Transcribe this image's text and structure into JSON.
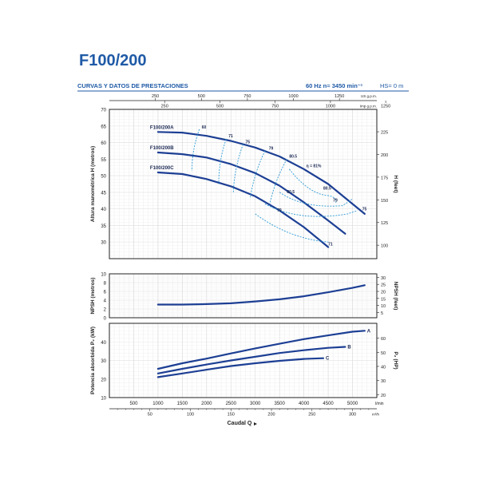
{
  "header": {
    "title": "F100/200",
    "subtitle": "CURVAS Y DATOS DE PRESTACIONES",
    "speed_info": "60 Hz  n= 3450 min⁻¹",
    "hs_info": "HS= 0 m"
  },
  "colors": {
    "title": "#1f5aa6",
    "curve": "#1d3f94",
    "efficiency": "#2f9ad6",
    "grid": "#d9d9d9",
    "axis": "#222222"
  },
  "chart_data": [
    {
      "type": "line",
      "x_scale": "Caudal Q",
      "x_unit": "l/min",
      "xlim": [
        0,
        5500
      ],
      "x_ticks": [
        500,
        1000,
        1500,
        2000,
        2500,
        3000,
        3500,
        4000,
        4500,
        5000
      ],
      "top_axis_ticks_gpm_upper": [
        250,
        500,
        750,
        1000,
        1250
      ],
      "top_axis_unit_upper": "US g.p.m.",
      "top_axis_ticks_imp_lower": [
        250,
        500,
        750,
        1000,
        1250
      ],
      "top_axis_unit_lower": "Imp g.p.m.",
      "ylabel": "Altura manométrica H (metros)",
      "ylabel_right": "H (feet)",
      "ylim": [
        25,
        70
      ],
      "y_ticks": [
        30,
        35,
        40,
        45,
        50,
        55,
        60,
        65,
        70
      ],
      "right_ticks": [
        100,
        125,
        150,
        175,
        200,
        225
      ],
      "series": [
        {
          "name": "F100/200A",
          "x": [
            1000,
            1500,
            2000,
            2500,
            3000,
            3500,
            4000,
            4500,
            5000,
            5250
          ],
          "y": [
            63.2,
            63.0,
            62.0,
            60.5,
            58.5,
            55.8,
            52.0,
            47.5,
            41.5,
            38.5
          ]
        },
        {
          "name": "F100/200B",
          "x": [
            1000,
            1500,
            2000,
            2500,
            3000,
            3500,
            4000,
            4500,
            4850
          ],
          "y": [
            57.0,
            56.5,
            55.5,
            53.5,
            50.8,
            47.0,
            42.0,
            36.5,
            32.5
          ]
        },
        {
          "name": "F100/200C",
          "x": [
            1000,
            1500,
            2000,
            2500,
            3000,
            3500,
            4000,
            4500
          ],
          "y": [
            51.0,
            50.5,
            49.0,
            46.8,
            43.8,
            39.5,
            34.5,
            28.5
          ]
        }
      ],
      "efficiency_labels": [
        "60",
        "71",
        "75",
        "79",
        "80.5",
        "η = 81%",
        "80.5",
        "79",
        "75",
        "80.5",
        "79",
        "71"
      ]
    },
    {
      "type": "line",
      "ylabel": "NPSH (metros)",
      "ylabel_right": "NPSH (feet)",
      "ylim": [
        0,
        10
      ],
      "y_ticks": [
        0,
        2,
        4,
        6,
        8,
        10
      ],
      "right_ticks": [
        5,
        10,
        15,
        20,
        25,
        30
      ],
      "series": [
        {
          "x": [
            1000,
            1500,
            2000,
            2500,
            3000,
            3500,
            4000,
            4500,
            5000,
            5250
          ],
          "y": [
            3.0,
            3.0,
            3.1,
            3.3,
            3.7,
            4.2,
            4.9,
            5.8,
            6.8,
            7.4
          ]
        }
      ]
    },
    {
      "type": "line",
      "ylabel": "Potencia absorbida P₂ (kW)",
      "ylabel_right": "P₂ (HP)",
      "ylim": [
        10,
        50
      ],
      "y_ticks": [
        10,
        20,
        30,
        40
      ],
      "right_ticks": [
        20,
        30,
        40,
        50,
        60
      ],
      "series": [
        {
          "name": "A",
          "x": [
            1000,
            1500,
            2000,
            2500,
            3000,
            3500,
            4000,
            4500,
            5000,
            5250
          ],
          "y": [
            25.5,
            28.5,
            31.0,
            33.8,
            36.5,
            39.0,
            41.5,
            43.5,
            45.5,
            46.0
          ]
        },
        {
          "name": "B",
          "x": [
            1000,
            1500,
            2000,
            2500,
            3000,
            3500,
            4000,
            4500,
            4850
          ],
          "y": [
            23.0,
            25.5,
            27.8,
            30.0,
            32.0,
            34.0,
            35.5,
            36.8,
            37.3
          ]
        },
        {
          "name": "C",
          "x": [
            1000,
            1500,
            2000,
            2500,
            3000,
            3500,
            4000,
            4400
          ],
          "y": [
            21.0,
            23.0,
            25.0,
            27.0,
            28.5,
            29.8,
            30.8,
            31.2
          ]
        }
      ],
      "x_label": "Caudal Q",
      "bottom_axis_unit": "l/min",
      "bottom_ticks_m3h": [
        50,
        100,
        150,
        200,
        250,
        300
      ],
      "bottom_axis_unit_lower": "m³/h"
    }
  ]
}
